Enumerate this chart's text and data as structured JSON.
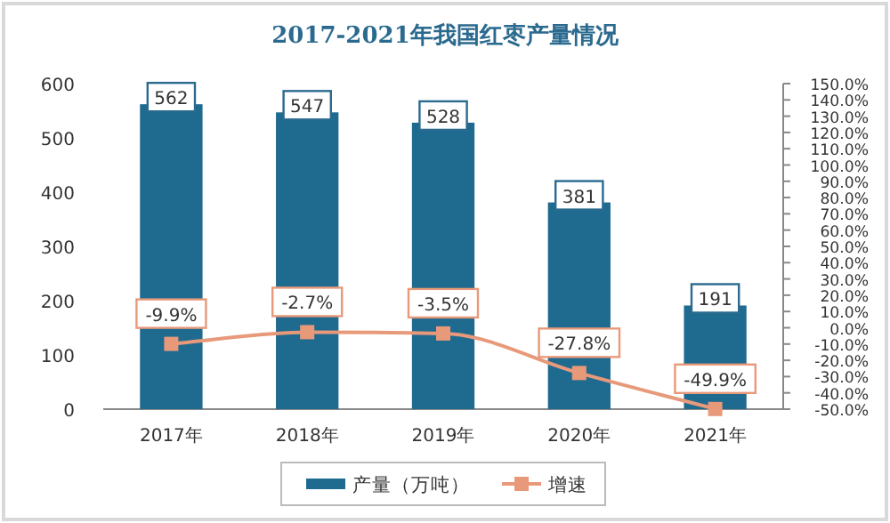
{
  "chart_data": {
    "type": "bar",
    "title": "2017-2021年我国红枣产量情况",
    "categories": [
      "2017年",
      "2018年",
      "2019年",
      "2020年",
      "2021年"
    ],
    "series": [
      {
        "name": "产量（万吨）",
        "color": "#1f6a8f",
        "values": [
          562,
          547,
          528,
          381,
          191
        ],
        "value_labels": [
          "562",
          "547",
          "528",
          "381",
          "191"
        ]
      },
      {
        "name": "增速",
        "type": "line",
        "axis": "y2",
        "color": "#e8997a",
        "marker": "square",
        "values": [
          -9.9,
          -2.7,
          -3.5,
          -27.8,
          -49.9
        ],
        "value_labels": [
          "-9.9%",
          "-2.7%",
          "-3.5%",
          "-27.8%",
          "-49.9%"
        ]
      }
    ],
    "ylim": [
      0,
      600
    ],
    "yticks": [
      0,
      100,
      200,
      300,
      400,
      500,
      600
    ],
    "y2lim": [
      -50,
      150
    ],
    "y2ticks": [
      {
        "value": -50,
        "label": "-50.0%"
      },
      {
        "value": -40,
        "label": "-40.0%"
      },
      {
        "value": -30,
        "label": "-30.0%"
      },
      {
        "value": -20,
        "label": "-20.0%"
      },
      {
        "value": -10,
        "label": "-10.0%"
      },
      {
        "value": 0,
        "label": "0.0%"
      },
      {
        "value": 10,
        "label": "10.0%"
      },
      {
        "value": 20,
        "label": "20.0%"
      },
      {
        "value": 30,
        "label": "30.0%"
      },
      {
        "value": 40,
        "label": "40.0%"
      },
      {
        "value": 50,
        "label": "50.0%"
      },
      {
        "value": 60,
        "label": "60.0%"
      },
      {
        "value": 70,
        "label": "70.0%"
      },
      {
        "value": 80,
        "label": "80.0%"
      },
      {
        "value": 90,
        "label": "90.0%"
      },
      {
        "value": 100,
        "label": "100.0%"
      },
      {
        "value": 110,
        "label": "110.0%"
      },
      {
        "value": 120,
        "label": "120.0%"
      },
      {
        "value": 130,
        "label": "130.0%"
      },
      {
        "value": 140,
        "label": "140.0%"
      },
      {
        "value": 150,
        "label": "150.0%"
      }
    ],
    "legend": "bottom",
    "grid": false
  }
}
